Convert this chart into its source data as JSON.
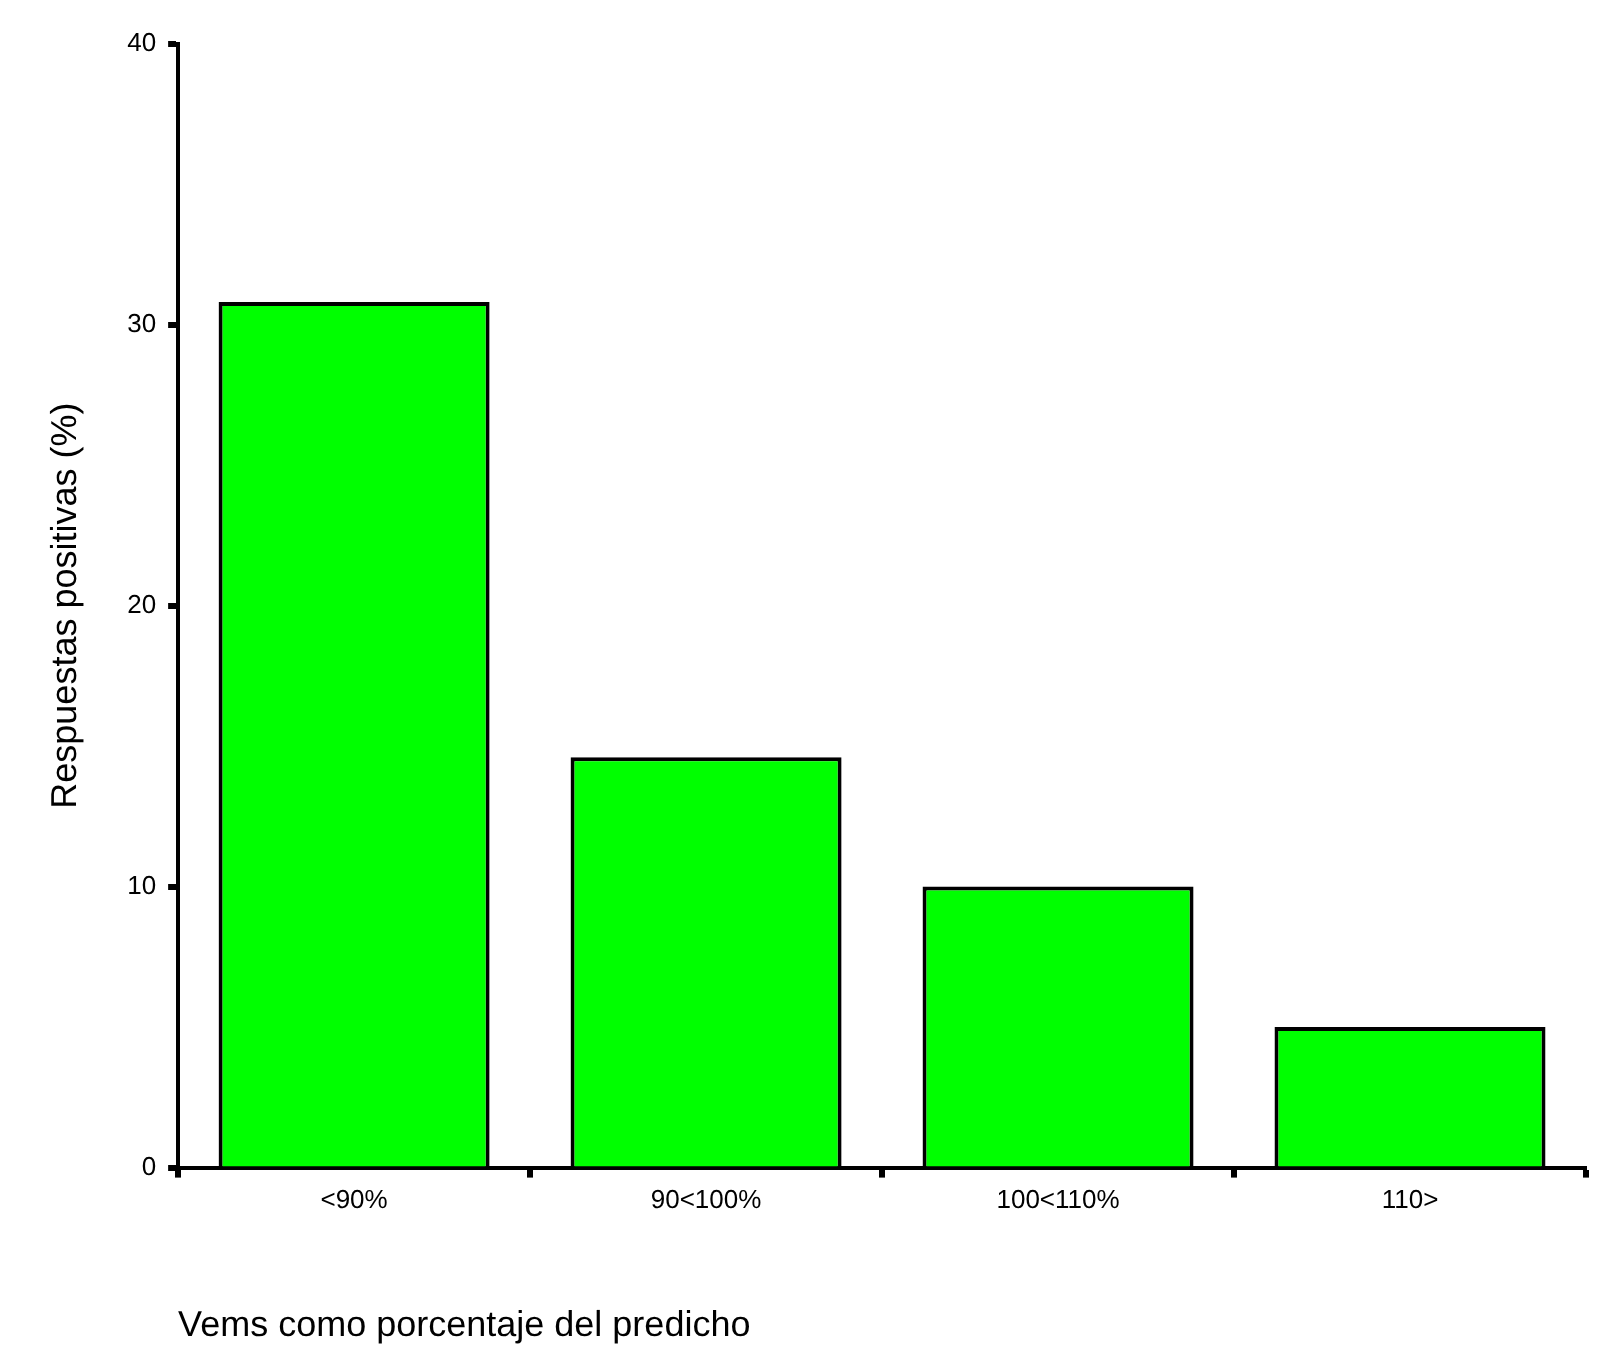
{
  "chart_data": {
    "type": "bar",
    "xlabel": "Vems como porcentaje del predicho",
    "ylabel": "Respuestas positivas (%)",
    "categories": [
      "<90%",
      "90<100%",
      "100<110%",
      "110>"
    ],
    "values": [
      30.8,
      14.6,
      10.0,
      5.0
    ],
    "color": "#00ff00",
    "ylim": [
      0,
      40
    ],
    "yticks": [
      0,
      10,
      20,
      30,
      40
    ],
    "grid": false
  }
}
